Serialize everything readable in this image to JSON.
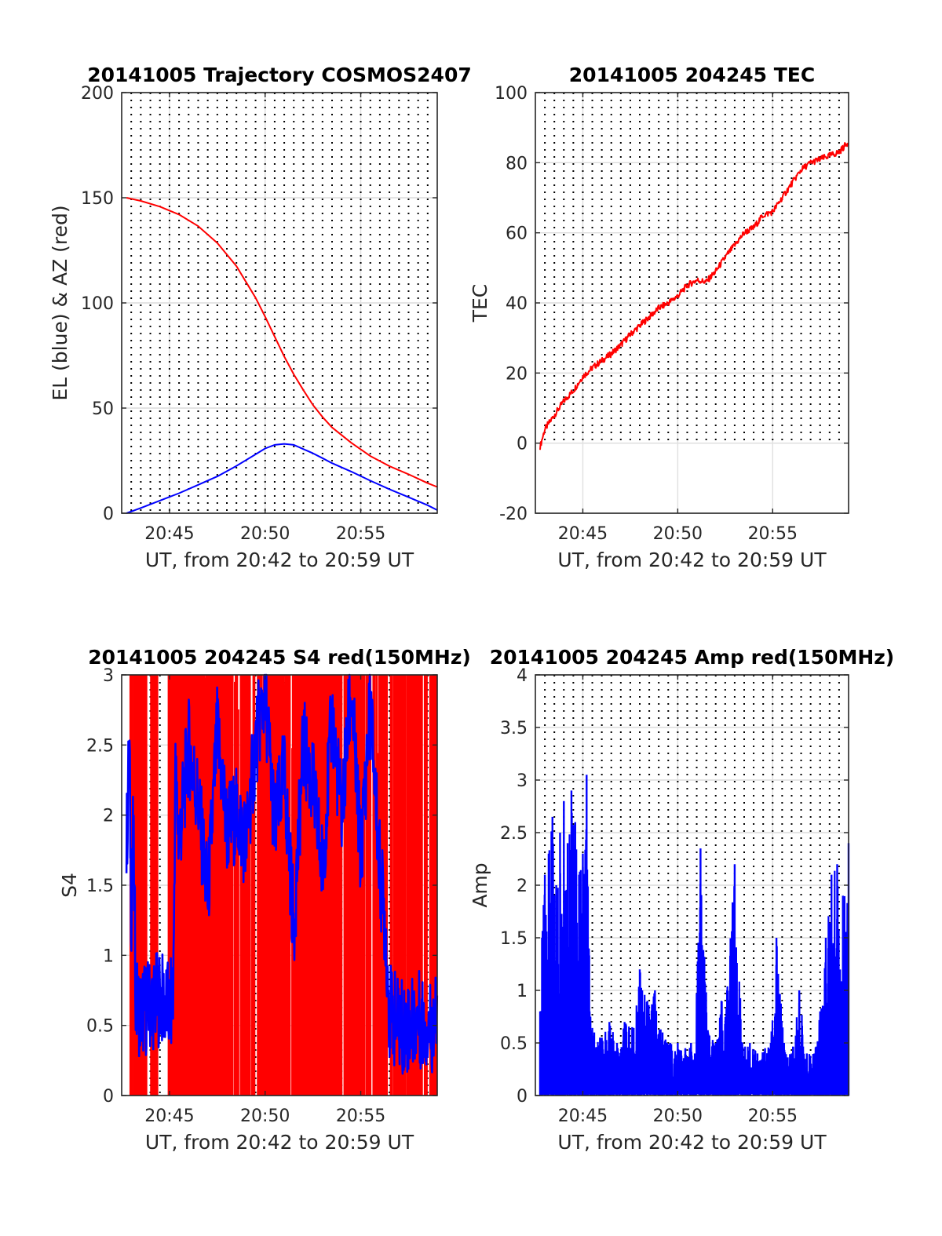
{
  "figure": {
    "background": "#ffffff"
  },
  "chart_data": [
    {
      "id": "trajectory",
      "type": "line",
      "title": "20141005 Trajectory COSMOS2407",
      "xlabel": "UT, from 20:42 to 20:59 UT",
      "ylabel": "EL (blue) & AZ (red)",
      "x_unit": "minutes after 20:42 UT",
      "xlim": [
        0.5,
        17
      ],
      "ylim": [
        0,
        200
      ],
      "yticks": [
        0,
        50,
        100,
        150,
        200
      ],
      "xticks": [
        {
          "at": 3,
          "label": "20:45"
        },
        {
          "at": 8,
          "label": "20:50"
        },
        {
          "at": 13,
          "label": "20:55"
        }
      ],
      "grid": true,
      "series": [
        {
          "color": "#ff0000",
          "x": [
            0.75,
            1.5,
            2.5,
            3.5,
            4.5,
            5.5,
            6.5,
            7.5,
            8.0,
            8.5,
            9.0,
            9.5,
            10.0,
            10.5,
            11.0,
            11.5,
            12.5,
            13.5,
            14.5,
            15.5,
            16.5,
            17.0
          ],
          "y": [
            150,
            148.5,
            145.8,
            142,
            136.5,
            128.5,
            117.5,
            102.5,
            93.5,
            84,
            74.5,
            66,
            58.5,
            51.5,
            45.8,
            40.8,
            33.5,
            27.2,
            22.4,
            18.5,
            14.3,
            12.5
          ]
        },
        {
          "color": "#0000ff",
          "x": [
            0.75,
            1.5,
            2.5,
            3.5,
            4.5,
            5.5,
            6.5,
            7.5,
            8.0,
            8.5,
            9.0,
            9.5,
            10.0,
            10.5,
            11.0,
            11.5,
            12.5,
            13.5,
            14.5,
            15.5,
            16.5,
            17.0
          ],
          "y": [
            0,
            2.5,
            6,
            9.5,
            13.5,
            17.5,
            22.5,
            28,
            30.8,
            32.5,
            33,
            32.5,
            30.5,
            28.5,
            26.2,
            23.8,
            19.8,
            15.5,
            11.4,
            7.6,
            3.8,
            1.5
          ]
        }
      ]
    },
    {
      "id": "tec",
      "type": "line",
      "title": "20141005 204245 TEC",
      "xlabel": "UT, from 20:42 to 20:59 UT",
      "ylabel": "TEC",
      "x_unit": "minutes after 20:42 UT",
      "xlim": [
        0.5,
        17
      ],
      "ylim": [
        -20,
        100
      ],
      "yticks": [
        -20,
        0,
        20,
        40,
        60,
        80,
        100
      ],
      "xticks": [
        {
          "at": 3,
          "label": "20:45"
        },
        {
          "at": 8,
          "label": "20:50"
        },
        {
          "at": 13,
          "label": "20:55"
        }
      ],
      "grid": true,
      "series": [
        {
          "color": "#ff0000",
          "x": [
            0.75,
            1.0,
            1.5,
            2.0,
            2.5,
            3.0,
            3.5,
            4.0,
            4.5,
            5.0,
            5.5,
            6.0,
            6.5,
            7.0,
            7.5,
            8.0,
            8.5,
            9.0,
            9.5,
            10.0,
            10.5,
            11.0,
            11.5,
            12.0,
            12.5,
            13.0,
            13.5,
            14.0,
            14.5,
            15.0,
            15.5,
            16.0,
            16.5,
            17.0
          ],
          "y": [
            -1,
            4,
            8,
            12,
            15,
            19,
            21.5,
            23.5,
            25.5,
            28,
            31,
            33.5,
            36,
            38.5,
            40,
            42,
            45,
            46.5,
            46,
            49,
            53,
            56.5,
            60,
            61.5,
            65,
            66,
            70,
            74,
            78,
            80,
            81,
            82,
            83,
            86
          ]
        }
      ]
    },
    {
      "id": "s4",
      "type": "line",
      "title": "20141005 204245 S4 red(150MHz)",
      "xlabel": "UT, from 20:42 to 20:59 UT",
      "ylabel": "S4",
      "x_unit": "minutes after 20:42 UT",
      "xlim": [
        0.5,
        17
      ],
      "ylim": [
        0,
        3
      ],
      "yticks": [
        0,
        0.5,
        1,
        1.5,
        2,
        2.5,
        3
      ],
      "ytick_labels": [
        "0",
        "0.5",
        "1",
        "1.5",
        "2",
        "2.5",
        "3"
      ],
      "xticks": [
        {
          "at": 3,
          "label": "20:45"
        },
        {
          "at": 8,
          "label": "20:50"
        },
        {
          "at": 13,
          "label": "20:55"
        }
      ],
      "grid": true,
      "series": [
        {
          "color": "#ff0000",
          "style": "spikes",
          "x_range": [
            1.0,
            17.0
          ],
          "x": [
            1.0,
            1.2,
            1.4,
            1.6,
            2.2,
            3.0,
            3.3,
            3.6,
            3.9,
            4.1,
            4.4,
            4.7,
            5.0,
            5.3,
            5.6,
            5.9,
            6.2,
            6.5,
            6.8,
            7.1,
            7.4,
            7.7,
            8.0,
            8.3,
            8.6,
            8.9,
            9.2,
            9.5,
            9.8,
            10.1,
            10.4,
            10.7,
            11.0,
            11.3,
            11.6,
            11.9,
            12.2,
            12.5,
            12.8,
            13.1,
            13.4,
            13.7,
            14.0,
            14.3,
            14.6,
            14.9,
            15.2,
            15.5,
            15.8,
            16.1,
            16.4,
            16.7,
            16.9
          ],
          "y": [
            3,
            3,
            3,
            3,
            3,
            3,
            3,
            3,
            3,
            3,
            3,
            3,
            3,
            3,
            3,
            3,
            3,
            3,
            3,
            3,
            3,
            3,
            3,
            3,
            3,
            3,
            3,
            3,
            3,
            3,
            3,
            3,
            3,
            3,
            3,
            3,
            3,
            3,
            3,
            3,
            3,
            3,
            3,
            3,
            3,
            3,
            3,
            3,
            3,
            3,
            3,
            3,
            3
          ]
        },
        {
          "color": "#0000ff",
          "x": [
            0.75,
            0.9,
            1.0,
            1.1,
            1.25,
            1.5,
            2.0,
            2.5,
            3.0,
            3.2,
            3.3,
            3.5,
            4.0,
            4.5,
            5.0,
            5.5,
            6.0,
            6.5,
            7.0,
            7.5,
            8.0,
            8.5,
            9.0,
            9.5,
            10.0,
            10.5,
            11.0,
            11.5,
            12.0,
            12.5,
            13.0,
            13.5,
            14.0,
            14.3,
            14.5,
            15.0,
            15.5,
            16.0,
            16.5,
            17.0
          ],
          "y": [
            1.75,
            2.5,
            1.3,
            1.9,
            0.65,
            0.6,
            0.65,
            0.7,
            0.6,
            0.7,
            2.3,
            1.8,
            2.5,
            2.1,
            1.4,
            2.6,
            1.9,
            2.0,
            1.8,
            2.5,
            2.9,
            1.9,
            2.3,
            1.2,
            2.5,
            2.2,
            1.6,
            2.7,
            2.0,
            2.9,
            1.7,
            2.8,
            1.6,
            1.2,
            0.6,
            0.5,
            0.5,
            0.55,
            0.5,
            0.5
          ]
        }
      ]
    },
    {
      "id": "amp",
      "type": "line",
      "title": "20141005 204245 Amp red(150MHz)",
      "xlabel": "UT, from 20:42 to 20:59 UT",
      "ylabel": "Amp",
      "x_unit": "minutes after 20:42 UT",
      "xlim": [
        0.5,
        17
      ],
      "ylim": [
        0,
        4
      ],
      "yticks": [
        0,
        0.5,
        1,
        1.5,
        2,
        2.5,
        3,
        3.5,
        4
      ],
      "ytick_labels": [
        "0",
        "0.5",
        "1",
        "1.5",
        "2",
        "2.5",
        "3",
        "3.5",
        "4"
      ],
      "xticks": [
        {
          "at": 3,
          "label": "20:45"
        },
        {
          "at": 8,
          "label": "20:50"
        },
        {
          "at": 13,
          "label": "20:55"
        }
      ],
      "grid": true,
      "series": [
        {
          "color": "#0000ff",
          "style": "spikes",
          "x": [
            0.75,
            0.85,
            1.0,
            1.2,
            1.4,
            1.6,
            1.8,
            2.0,
            2.2,
            2.4,
            2.6,
            2.8,
            3.0,
            3.2,
            3.4,
            3.6,
            4.0,
            4.4,
            4.8,
            5.2,
            5.6,
            6.0,
            6.4,
            6.8,
            7.2,
            7.6,
            8.0,
            8.4,
            8.7,
            8.9,
            9.2,
            9.6,
            10.0,
            10.3,
            10.6,
            11.0,
            11.4,
            11.8,
            12.2,
            12.6,
            12.9,
            13.2,
            13.6,
            14.0,
            14.4,
            14.8,
            15.2,
            15.5,
            15.8,
            16.1,
            16.4,
            16.7,
            17.0
          ],
          "y": [
            0.8,
            1.5,
            2.1,
            2.3,
            2.65,
            2.0,
            2.5,
            2.8,
            2.4,
            2.9,
            2.6,
            2.1,
            2.3,
            3.05,
            0.75,
            0.6,
            0.55,
            0.7,
            0.5,
            0.7,
            0.65,
            1.2,
            0.9,
            1.0,
            0.6,
            0.5,
            0.5,
            0.45,
            0.5,
            0.4,
            2.35,
            0.6,
            0.5,
            0.9,
            1.0,
            2.2,
            0.5,
            0.5,
            0.4,
            0.45,
            0.5,
            1.5,
            0.5,
            0.4,
            1.0,
            0.4,
            0.4,
            0.8,
            1.5,
            2.1,
            2.2,
            1.9,
            2.4
          ]
        }
      ]
    }
  ]
}
